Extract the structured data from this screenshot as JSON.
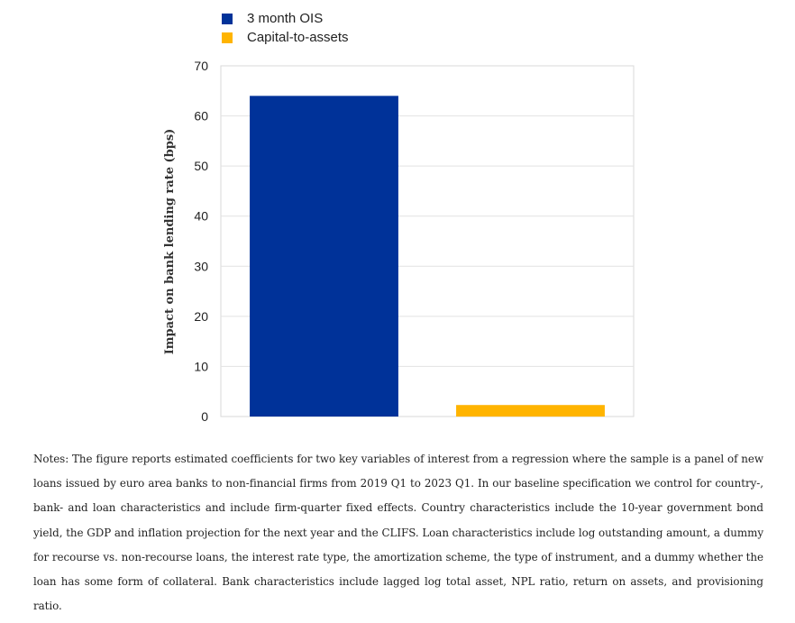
{
  "chart_data": {
    "type": "bar",
    "categories": [
      "",
      ""
    ],
    "series": [
      {
        "name": "3 month OIS",
        "color": "#003299",
        "values": [
          64,
          null
        ]
      },
      {
        "name": "Capital-to-assets",
        "color": "#FFB400",
        "values": [
          null,
          2.3
        ]
      }
    ],
    "title": "",
    "xlabel": "",
    "ylabel": "Impact on bank lending rate (bps)",
    "ylim": [
      0,
      70
    ],
    "yticks": [
      0,
      10,
      20,
      30,
      40,
      50,
      60,
      70
    ],
    "grid": true,
    "legend": "top-left"
  },
  "notes": "Notes: The figure reports estimated coefficients for two key variables of interest from a regression where the sample is a panel of new loans issued by euro area banks to non-financial firms from 2019 Q1 to 2023 Q1. In our baseline specification we control for country-, bank- and loan characteristics and include firm-quarter fixed effects. Country characteristics include the 10-year government bond yield, the GDP and inflation projection for the next year and the CLIFS. Loan characteristics include log outstanding amount, a dummy for recourse vs. non-recourse loans, the interest rate type, the amortization scheme, the type of instrument, and a dummy whether the loan has some form of collateral. Bank characteristics include lagged log total asset, NPL ratio, return on assets, and provisioning ratio."
}
